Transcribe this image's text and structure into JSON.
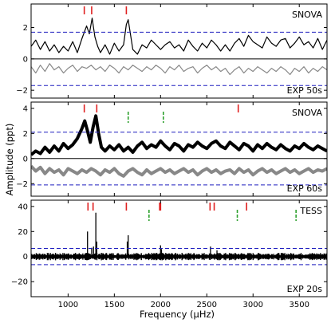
{
  "chart_data": {
    "type": "line",
    "xlabel": "Frequency (μHz)",
    "ylabel": "Amplitude (ppt)",
    "xlim": [
      600,
      3800
    ],
    "x_ticks": [
      1000,
      1500,
      2000,
      2500,
      3000,
      3500
    ],
    "x_tick_labels": [
      "1000",
      "1500",
      "2000",
      "2500",
      "3000",
      "3500"
    ],
    "panels": [
      {
        "label_top": "SNOVA",
        "label_bottom": "EXP 50s",
        "ylim": [
          -2.5,
          3.5
        ],
        "y_ticks": [
          -2,
          0,
          2
        ],
        "significance_level": 1.7,
        "red_marks": [
          1175,
          1255,
          1630
        ],
        "green_marks": [],
        "series": [
          {
            "role": "upper",
            "color": "#000000",
            "x": [
              600,
              650,
              700,
              750,
              800,
              850,
              900,
              950,
              1000,
              1050,
              1100,
              1150,
              1200,
              1230,
              1260,
              1290,
              1320,
              1350,
              1400,
              1450,
              1500,
              1550,
              1600,
              1630,
              1650,
              1700,
              1750,
              1800,
              1850,
              1900,
              1950,
              2000,
              2050,
              2100,
              2150,
              2200,
              2250,
              2300,
              2350,
              2400,
              2450,
              2500,
              2550,
              2600,
              2650,
              2700,
              2750,
              2800,
              2850,
              2900,
              2950,
              3000,
              3050,
              3100,
              3150,
              3200,
              3250,
              3300,
              3350,
              3400,
              3450,
              3500,
              3550,
              3600,
              3650,
              3700,
              3750,
              3800
            ],
            "y": [
              0.8,
              1.2,
              0.6,
              1.1,
              0.5,
              0.9,
              0.4,
              0.8,
              0.5,
              1.1,
              0.4,
              1.3,
              2.1,
              1.6,
              2.6,
              1.4,
              0.8,
              0.4,
              0.9,
              0.3,
              1.0,
              0.5,
              0.9,
              2.2,
              2.5,
              0.6,
              0.3,
              0.9,
              0.7,
              1.2,
              0.9,
              0.6,
              0.9,
              1.1,
              0.7,
              0.9,
              0.5,
              1.2,
              0.8,
              0.5,
              1.0,
              0.7,
              1.2,
              0.9,
              0.5,
              0.9,
              0.5,
              1.0,
              1.3,
              0.8,
              1.5,
              1.1,
              0.9,
              0.7,
              1.4,
              1.0,
              0.8,
              1.2,
              1.3,
              0.7,
              1.0,
              1.4,
              0.9,
              1.1,
              0.7,
              1.3,
              0.6,
              1.2
            ]
          },
          {
            "role": "lower",
            "color": "#888888",
            "x": [
              600,
              650,
              700,
              750,
              800,
              850,
              900,
              950,
              1000,
              1050,
              1100,
              1150,
              1200,
              1250,
              1300,
              1350,
              1400,
              1450,
              1500,
              1550,
              1600,
              1650,
              1700,
              1750,
              1800,
              1850,
              1900,
              1950,
              2000,
              2050,
              2100,
              2150,
              2200,
              2250,
              2300,
              2350,
              2400,
              2450,
              2500,
              2550,
              2600,
              2650,
              2700,
              2750,
              2800,
              2850,
              2900,
              2950,
              3000,
              3050,
              3100,
              3150,
              3200,
              3250,
              3300,
              3350,
              3400,
              3450,
              3500,
              3550,
              3600,
              3650,
              3700,
              3750,
              3800
            ],
            "y": [
              -0.5,
              -0.9,
              -0.4,
              -0.8,
              -0.3,
              -0.7,
              -0.5,
              -0.9,
              -0.6,
              -0.4,
              -0.8,
              -0.5,
              -0.6,
              -0.4,
              -0.7,
              -0.5,
              -0.8,
              -0.4,
              -0.6,
              -0.9,
              -0.5,
              -0.7,
              -0.4,
              -0.6,
              -0.8,
              -0.5,
              -0.7,
              -0.4,
              -0.6,
              -0.9,
              -0.5,
              -0.7,
              -0.4,
              -0.8,
              -0.6,
              -0.5,
              -0.9,
              -0.6,
              -0.4,
              -0.7,
              -0.5,
              -0.8,
              -0.6,
              -1.0,
              -0.7,
              -0.5,
              -0.9,
              -0.6,
              -0.8,
              -0.5,
              -0.7,
              -0.9,
              -0.6,
              -0.8,
              -0.5,
              -0.7,
              -1.0,
              -0.6,
              -0.8,
              -0.5,
              -0.9,
              -0.6,
              -0.8,
              -0.5,
              -0.7
            ]
          }
        ]
      },
      {
        "label_top": "SNOVA",
        "label_bottom": "EXP 60s",
        "ylim": [
          -3.0,
          4.5
        ],
        "y_ticks": [
          -2,
          0,
          2,
          4
        ],
        "significance_level": 2.1,
        "red_marks": [
          1175,
          1310,
          2840
        ],
        "green_marks": [
          1650,
          2030
        ],
        "series": [
          {
            "role": "upper",
            "color": "#000000",
            "x": [
              600,
              650,
              700,
              750,
              800,
              850,
              900,
              950,
              1000,
              1050,
              1100,
              1150,
              1180,
              1210,
              1240,
              1270,
              1300,
              1330,
              1360,
              1400,
              1450,
              1500,
              1550,
              1600,
              1650,
              1700,
              1750,
              1800,
              1850,
              1900,
              1950,
              2000,
              2050,
              2100,
              2150,
              2200,
              2250,
              2300,
              2350,
              2400,
              2450,
              2500,
              2550,
              2600,
              2650,
              2700,
              2750,
              2800,
              2850,
              2900,
              2950,
              3000,
              3050,
              3100,
              3150,
              3200,
              3250,
              3300,
              3350,
              3400,
              3450,
              3500,
              3550,
              3600,
              3650,
              3700,
              3750,
              3800
            ],
            "y": [
              0.3,
              0.6,
              0.4,
              0.9,
              0.5,
              1.0,
              0.6,
              1.2,
              0.8,
              1.1,
              1.6,
              2.4,
              3.0,
              2.2,
              1.3,
              2.5,
              3.4,
              2.0,
              0.9,
              0.6,
              1.0,
              0.7,
              1.1,
              0.6,
              0.9,
              0.5,
              1.0,
              1.3,
              0.8,
              1.1,
              0.9,
              1.4,
              1.0,
              0.7,
              1.2,
              1.0,
              0.6,
              1.1,
              0.9,
              1.3,
              1.0,
              0.8,
              1.2,
              1.4,
              1.0,
              0.8,
              1.3,
              1.0,
              0.7,
              1.2,
              1.0,
              0.6,
              1.1,
              0.8,
              1.2,
              0.9,
              0.7,
              1.1,
              0.8,
              0.6,
              1.0,
              0.8,
              1.2,
              0.9,
              0.7,
              1.0,
              0.8,
              0.6
            ]
          },
          {
            "role": "lower",
            "color": "#888888",
            "x": [
              600,
              650,
              700,
              750,
              800,
              850,
              900,
              950,
              1000,
              1050,
              1100,
              1150,
              1200,
              1250,
              1300,
              1350,
              1400,
              1450,
              1500,
              1550,
              1600,
              1650,
              1700,
              1750,
              1800,
              1850,
              1900,
              1950,
              2000,
              2050,
              2100,
              2150,
              2200,
              2250,
              2300,
              2350,
              2400,
              2450,
              2500,
              2550,
              2600,
              2650,
              2700,
              2750,
              2800,
              2850,
              2900,
              2950,
              3000,
              3050,
              3100,
              3150,
              3200,
              3250,
              3300,
              3350,
              3400,
              3450,
              3500,
              3550,
              3600,
              3650,
              3700,
              3750,
              3800
            ],
            "y": [
              -0.6,
              -1.0,
              -0.7,
              -1.2,
              -0.8,
              -1.1,
              -0.9,
              -1.3,
              -0.8,
              -1.0,
              -1.2,
              -0.9,
              -1.1,
              -0.8,
              -1.0,
              -1.3,
              -0.9,
              -1.1,
              -0.8,
              -1.2,
              -1.4,
              -1.0,
              -0.8,
              -1.1,
              -1.3,
              -0.9,
              -1.2,
              -1.0,
              -0.8,
              -1.1,
              -0.9,
              -1.2,
              -1.0,
              -0.8,
              -1.1,
              -0.9,
              -1.3,
              -1.0,
              -0.8,
              -1.1,
              -0.9,
              -1.2,
              -1.0,
              -0.9,
              -1.2,
              -0.8,
              -1.1,
              -0.9,
              -1.3,
              -1.0,
              -0.8,
              -1.1,
              -0.9,
              -1.2,
              -1.0,
              -0.8,
              -1.1,
              -0.9,
              -1.2,
              -1.0,
              -0.8,
              -1.1,
              -0.9,
              -1.0,
              -0.8
            ]
          }
        ]
      },
      {
        "label_top": "TESS",
        "label_bottom": "EXP 20s",
        "ylim": [
          -32,
          45
        ],
        "y_ticks": [
          -20,
          0,
          20,
          40
        ],
        "significance_level": 6.5,
        "red_marks": [
          1215,
          1270,
          1630,
          1990,
          2000,
          2535,
          2580,
          2930
        ],
        "green_marks": [
          1875,
          2830,
          3465
        ],
        "series": [
          {
            "role": "spectrum",
            "color": "#000000",
            "peaks_x": [
              1210,
              1255,
              1275,
              1300,
              1310,
              1640,
              1650,
              2000,
              2010,
              2540,
              2610
            ],
            "peaks_y": [
              20,
              7,
              8,
              35,
              12,
              12,
              17,
              9,
              6,
              8,
              5
            ],
            "noise_level": 2.5
          }
        ]
      }
    ]
  }
}
